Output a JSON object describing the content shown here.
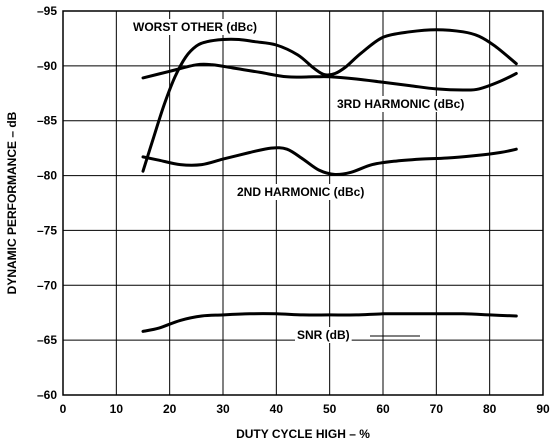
{
  "chart_data": {
    "type": "line",
    "xlabel": "DUTY CYCLE HIGH – %",
    "ylabel": "DYNAMIC PERFORMANCE – dB",
    "xlim": [
      0,
      90
    ],
    "ylim": [
      -60,
      -95
    ],
    "xticks": [
      0,
      10,
      20,
      30,
      40,
      50,
      60,
      70,
      80,
      90
    ],
    "xtick_labels": [
      "0",
      "10",
      "20",
      "30",
      "40",
      "50",
      "60",
      "70",
      "80",
      "90"
    ],
    "yticks": [
      -95,
      -90,
      -85,
      -80,
      -75,
      -70,
      -65,
      -60
    ],
    "ytick_labels": [
      "–95",
      "–90",
      "–85",
      "–80",
      "–75",
      "–70",
      "–65",
      "–60"
    ],
    "grid": true,
    "series": [
      {
        "name": "WORST OTHER (dBc)",
        "x": [
          15,
          17,
          19,
          21,
          23,
          25,
          27,
          30,
          33,
          36,
          40,
          44,
          47,
          49,
          51,
          53,
          56,
          60,
          65,
          70,
          75,
          78,
          81,
          85
        ],
        "values": [
          -80.4,
          -83.5,
          -86.5,
          -89.0,
          -90.8,
          -91.8,
          -92.2,
          -92.4,
          -92.4,
          -92.2,
          -91.9,
          -91.0,
          -89.8,
          -89.2,
          -89.3,
          -89.9,
          -91.2,
          -92.6,
          -93.1,
          -93.3,
          -93.1,
          -92.7,
          -91.8,
          -90.2
        ]
      },
      {
        "name": "3RD HARMONIC (dBc)",
        "x": [
          15,
          20,
          25,
          28,
          32,
          37,
          42,
          47,
          50,
          55,
          60,
          65,
          70,
          75,
          78,
          82,
          85
        ],
        "values": [
          -88.9,
          -89.5,
          -90.1,
          -90.1,
          -89.8,
          -89.4,
          -89.0,
          -89.0,
          -89.0,
          -88.8,
          -88.5,
          -88.2,
          -87.9,
          -87.8,
          -87.9,
          -88.6,
          -89.3
        ]
      },
      {
        "name": "2ND HARMONIC (dBc)",
        "x": [
          15,
          18,
          22,
          26,
          30,
          35,
          39,
          42,
          45,
          48,
          51,
          54,
          58,
          62,
          67,
          72,
          77,
          82,
          85
        ],
        "values": [
          -81.7,
          -81.4,
          -81.0,
          -81.0,
          -81.5,
          -82.1,
          -82.5,
          -82.4,
          -81.5,
          -80.5,
          -80.1,
          -80.3,
          -81.0,
          -81.3,
          -81.5,
          -81.6,
          -81.8,
          -82.1,
          -82.4
        ]
      },
      {
        "name": "SNR (dB)",
        "x": [
          15,
          18,
          22,
          26,
          30,
          35,
          40,
          45,
          50,
          55,
          60,
          65,
          70,
          75,
          80,
          85
        ],
        "values": [
          -65.8,
          -66.1,
          -66.8,
          -67.2,
          -67.3,
          -67.4,
          -67.4,
          -67.3,
          -67.3,
          -67.3,
          -67.4,
          -67.4,
          -67.4,
          -67.4,
          -67.3,
          -67.2
        ]
      }
    ]
  }
}
